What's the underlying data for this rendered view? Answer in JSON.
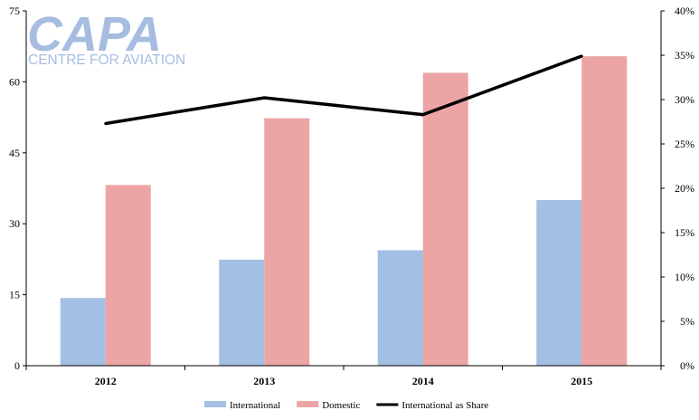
{
  "watermark": {
    "logo": "CAPA",
    "tagline": "CENTRE FOR AVIATION"
  },
  "chart_data": {
    "type": "bar",
    "categories": [
      "2012",
      "2013",
      "2014",
      "2015"
    ],
    "series": [
      {
        "name": "International",
        "type": "bar",
        "axis": "left",
        "color": "#a3bfe3",
        "values": [
          14.3,
          22.4,
          24.4,
          35.0
        ]
      },
      {
        "name": "Domestic",
        "type": "bar",
        "axis": "left",
        "color": "#eca5a4",
        "values": [
          38.2,
          52.3,
          61.9,
          65.4
        ]
      },
      {
        "name": "International as Share",
        "type": "line",
        "axis": "right",
        "color": "#000000",
        "values": [
          27.3,
          30.2,
          28.3,
          34.9
        ]
      }
    ],
    "y_left": {
      "range": [
        0,
        75
      ],
      "ticks": [
        "0",
        "15",
        "30",
        "45",
        "60",
        "75"
      ],
      "tick_values": [
        0,
        15,
        30,
        45,
        60,
        75
      ]
    },
    "y_right": {
      "range": [
        0,
        40
      ],
      "ticks": [
        "0%",
        "5%",
        "10%",
        "15%",
        "20%",
        "25%",
        "30%",
        "35%",
        "40%"
      ],
      "tick_values": [
        0,
        5,
        10,
        15,
        20,
        25,
        30,
        35,
        40
      ]
    },
    "grid": false,
    "legend_position": "bottom-center"
  }
}
